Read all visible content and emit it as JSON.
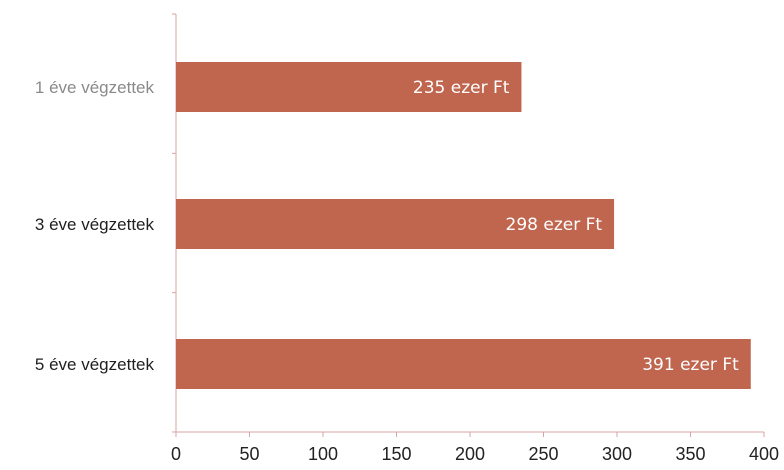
{
  "chart_data": {
    "type": "bar",
    "orientation": "horizontal",
    "title": "",
    "xlabel": "",
    "ylabel": "",
    "categories": [
      "1 éve végzettek",
      "3 éve végzettek",
      "5 éve végzettek"
    ],
    "values": [
      235,
      298,
      391
    ],
    "data_labels": [
      "235 ezer Ft",
      "298 ezer Ft",
      "391 ezer Ft"
    ],
    "xlim": [
      0,
      400
    ],
    "xticks": [
      "0",
      "50",
      "100",
      "150",
      "200",
      "250",
      "300",
      "350",
      "400"
    ],
    "grid": false,
    "legend": "none",
    "colors": {
      "bar": "#c0664f",
      "axis": "#d9a3a3",
      "category_first": "#8a8a8a",
      "category": "#1f1f1f"
    }
  }
}
